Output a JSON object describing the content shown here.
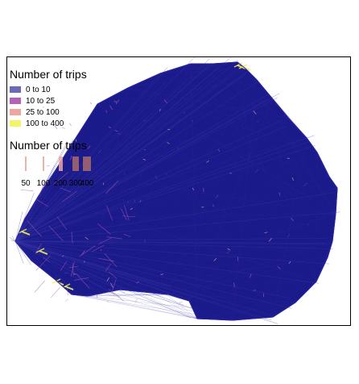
{
  "map": {
    "base_color": "#1b1a8a",
    "edge_color": "#221f9c",
    "colors": {
      "c0": "#5f5fb8",
      "c1": "#b35ab8",
      "c2": "#eba7a3",
      "c3": "#f2f25a"
    }
  },
  "legend_fill": {
    "title": "Number of trips",
    "items": [
      {
        "label": "0 to 10",
        "color": "#6b6bb5"
      },
      {
        "label": "10 to 25",
        "color": "#b561b8"
      },
      {
        "label": "25 to 100",
        "color": "#eea6a0"
      },
      {
        "label": "100 to 400",
        "color": "#f4f46a"
      }
    ]
  },
  "legend_width": {
    "title": "Number of trips",
    "items": [
      {
        "label": "50",
        "value": 50
      },
      {
        "label": "100",
        "value": 100
      },
      {
        "label": "200",
        "value": 200
      },
      {
        "label": "300",
        "value": 300
      },
      {
        "label": "400",
        "value": 400
      }
    ]
  }
}
